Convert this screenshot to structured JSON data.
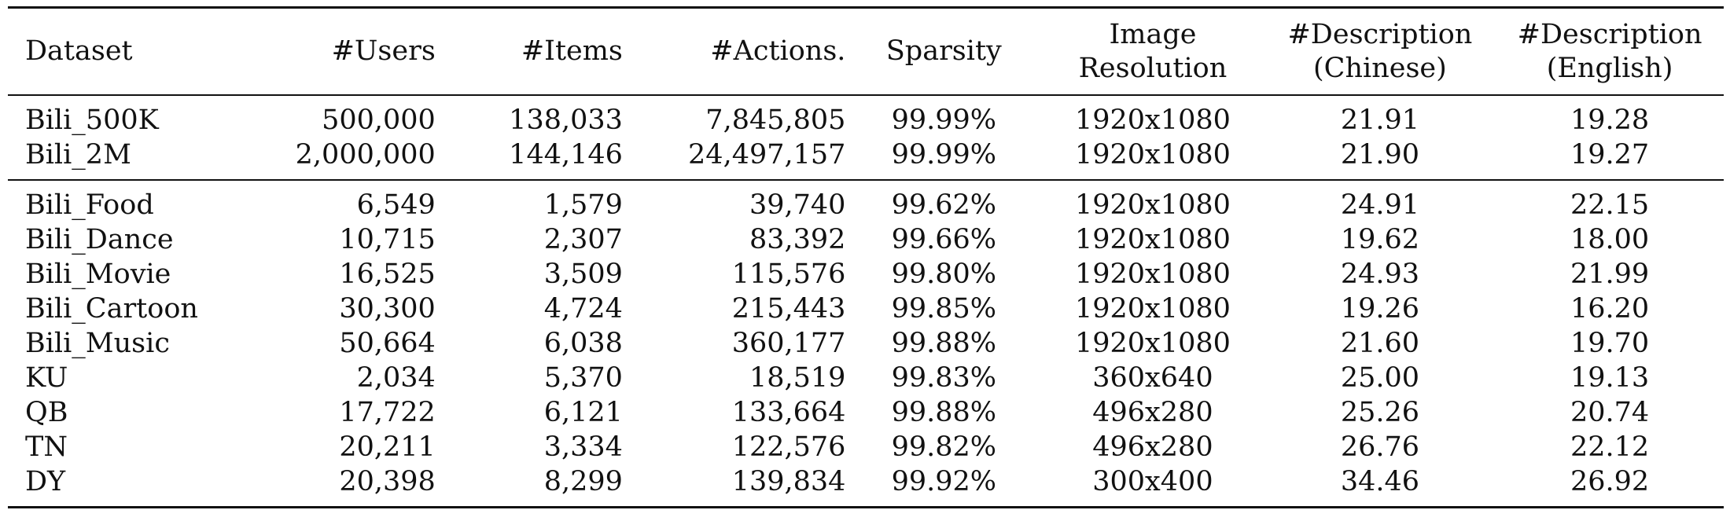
{
  "table": {
    "headers": {
      "dataset": "Dataset",
      "users": "#Users",
      "items": "#Items",
      "actions": "#Actions.",
      "sparsity": "Sparsity",
      "resolution_line1": "Image",
      "resolution_line2": "Resolution",
      "desc_zh_line1": "#Description",
      "desc_zh_line2": "(Chinese)",
      "desc_en_line1": "#Description",
      "desc_en_line2": "(English)"
    },
    "group1": [
      {
        "dataset": "Bili_500K",
        "users": "500,000",
        "items": "138,033",
        "actions": "7,845,805",
        "sparsity": "99.99%",
        "resolution": "1920x1080",
        "desc_zh": "21.91",
        "desc_en": "19.28"
      },
      {
        "dataset": "Bili_2M",
        "users": "2,000,000",
        "items": "144,146",
        "actions": "24,497,157",
        "sparsity": "99.99%",
        "resolution": "1920x1080",
        "desc_zh": "21.90",
        "desc_en": "19.27"
      }
    ],
    "group2": [
      {
        "dataset": "Bili_Food",
        "users": "6,549",
        "items": "1,579",
        "actions": "39,740",
        "sparsity": "99.62%",
        "resolution": "1920x1080",
        "desc_zh": "24.91",
        "desc_en": "22.15"
      },
      {
        "dataset": "Bili_Dance",
        "users": "10,715",
        "items": "2,307",
        "actions": "83,392",
        "sparsity": "99.66%",
        "resolution": "1920x1080",
        "desc_zh": "19.62",
        "desc_en": "18.00"
      },
      {
        "dataset": "Bili_Movie",
        "users": "16,525",
        "items": "3,509",
        "actions": "115,576",
        "sparsity": "99.80%",
        "resolution": "1920x1080",
        "desc_zh": "24.93",
        "desc_en": "21.99"
      },
      {
        "dataset": "Bili_Cartoon",
        "users": "30,300",
        "items": "4,724",
        "actions": "215,443",
        "sparsity": "99.85%",
        "resolution": "1920x1080",
        "desc_zh": "19.26",
        "desc_en": "16.20"
      },
      {
        "dataset": "Bili_Music",
        "users": "50,664",
        "items": "6,038",
        "actions": "360,177",
        "sparsity": "99.88%",
        "resolution": "1920x1080",
        "desc_zh": "21.60",
        "desc_en": "19.70"
      },
      {
        "dataset": "KU",
        "users": "2,034",
        "items": "5,370",
        "actions": "18,519",
        "sparsity": "99.83%",
        "resolution": "360x640",
        "desc_zh": "25.00",
        "desc_en": "19.13"
      },
      {
        "dataset": "QB",
        "users": "17,722",
        "items": "6,121",
        "actions": "133,664",
        "sparsity": "99.88%",
        "resolution": "496x280",
        "desc_zh": "25.26",
        "desc_en": "20.74"
      },
      {
        "dataset": "TN",
        "users": "20,211",
        "items": "3,334",
        "actions": "122,576",
        "sparsity": "99.82%",
        "resolution": "496x280",
        "desc_zh": "26.76",
        "desc_en": "22.12"
      },
      {
        "dataset": "DY",
        "users": "20,398",
        "items": "8,299",
        "actions": "139,834",
        "sparsity": "99.92%",
        "resolution": "300x400",
        "desc_zh": "34.46",
        "desc_en": "26.92"
      }
    ]
  }
}
